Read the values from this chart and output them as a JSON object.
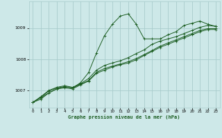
{
  "title": "Graphe pression niveau de la mer (hPa)",
  "background_color": "#cde8e8",
  "grid_color": "#a8cccc",
  "line_color": "#1a5c20",
  "xlim": [
    -0.5,
    23.5
  ],
  "ylim": [
    1006.45,
    1009.85
  ],
  "yticks": [
    1007,
    1008,
    1009
  ],
  "xticks": [
    0,
    1,
    2,
    3,
    4,
    5,
    6,
    7,
    8,
    9,
    10,
    11,
    12,
    13,
    14,
    15,
    16,
    17,
    18,
    19,
    20,
    21,
    22,
    23
  ],
  "series": [
    [
      1006.62,
      1006.77,
      1006.92,
      1007.05,
      1007.12,
      1007.08,
      1007.25,
      1007.57,
      1008.2,
      1008.75,
      1009.12,
      1009.38,
      1009.45,
      1009.12,
      1008.65,
      1008.65,
      1008.65,
      1008.78,
      1008.88,
      1009.08,
      1009.15,
      1009.22,
      1009.12,
      1009.05
    ],
    [
      1006.62,
      1006.8,
      1007.0,
      1007.1,
      1007.15,
      1007.1,
      1007.22,
      1007.38,
      1007.65,
      1007.8,
      1007.88,
      1007.95,
      1008.05,
      1008.18,
      1008.3,
      1008.48,
      1008.58,
      1008.65,
      1008.72,
      1008.82,
      1008.92,
      1009.02,
      1009.08,
      1009.05
    ],
    [
      1006.62,
      1006.78,
      1006.98,
      1007.08,
      1007.12,
      1007.08,
      1007.2,
      1007.32,
      1007.58,
      1007.7,
      1007.78,
      1007.85,
      1007.92,
      1008.02,
      1008.15,
      1008.28,
      1008.42,
      1008.52,
      1008.62,
      1008.72,
      1008.82,
      1008.92,
      1008.98,
      1008.98
    ],
    [
      1006.62,
      1006.72,
      1006.92,
      1007.05,
      1007.08,
      1007.05,
      1007.18,
      1007.3,
      1007.55,
      1007.65,
      1007.75,
      1007.82,
      1007.88,
      1007.98,
      1008.12,
      1008.25,
      1008.38,
      1008.48,
      1008.58,
      1008.68,
      1008.78,
      1008.88,
      1008.95,
      1008.95
    ]
  ]
}
